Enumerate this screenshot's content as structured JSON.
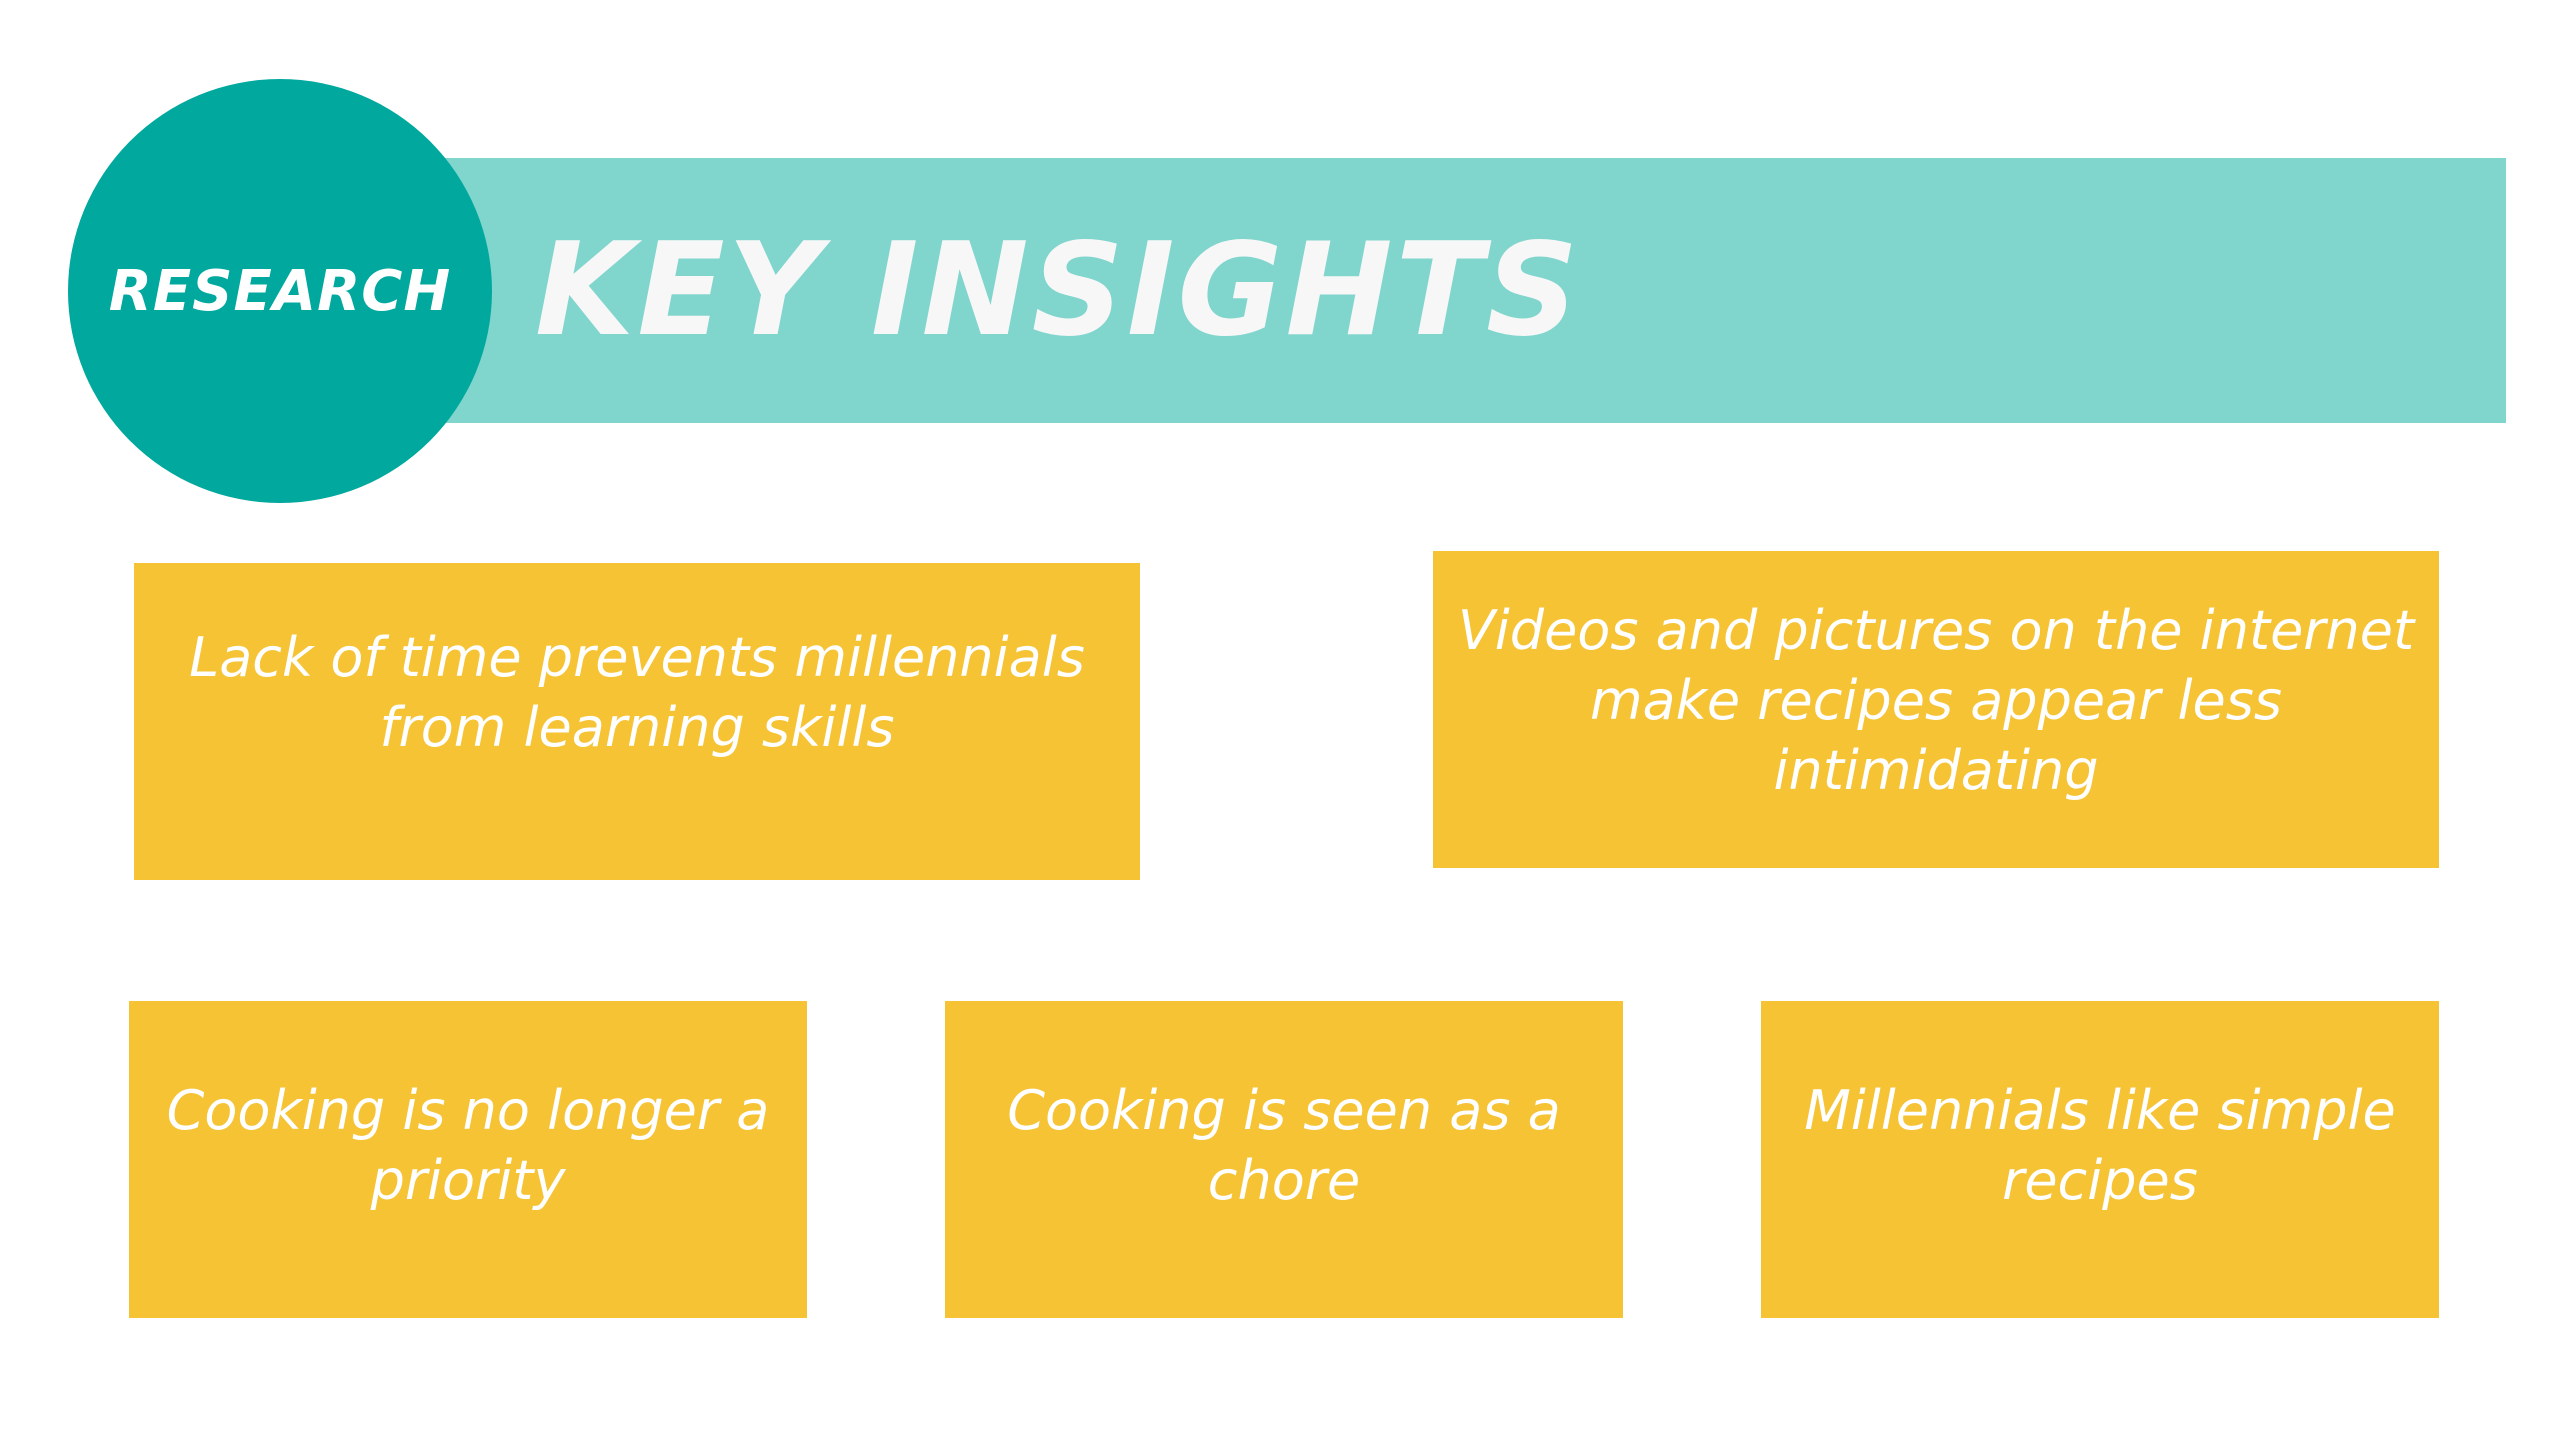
{
  "header": {
    "badge_label": "RESEARCH",
    "title": "KEY INSIGHTS"
  },
  "insights": [
    {
      "text": "Lack of time prevents millennials from learning skills"
    },
    {
      "text": "Videos and pictures on the internet make recipes appear less intimidating"
    },
    {
      "text": "Cooking is no longer a priority"
    },
    {
      "text": "Cooking is seen as a chore"
    },
    {
      "text": "Millennials like simple recipes"
    }
  ],
  "colors": {
    "banner": "#80d5cd",
    "badge": "#00a89e",
    "card": "#f5c334",
    "text": "#ffffff"
  }
}
